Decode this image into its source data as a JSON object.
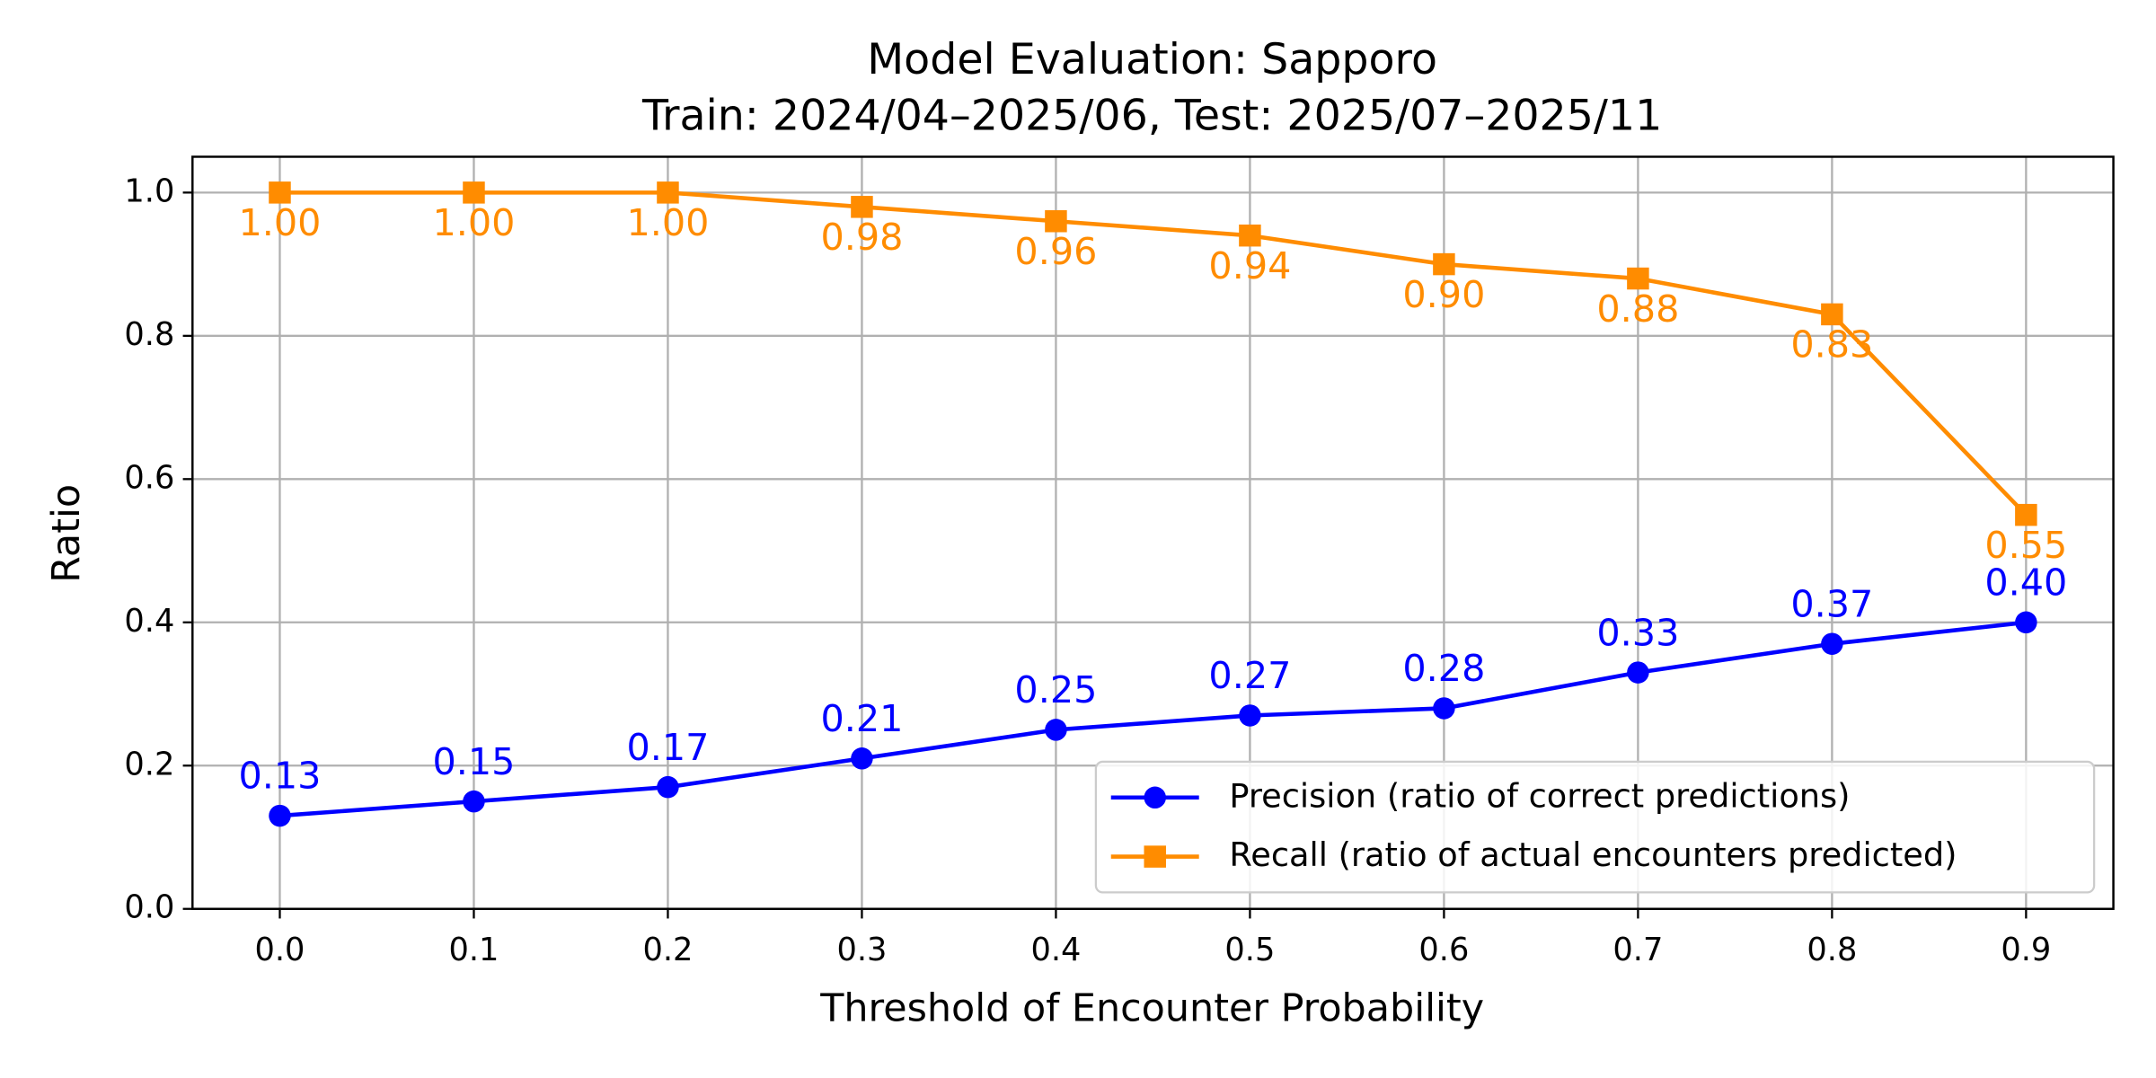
{
  "chart_data": {
    "type": "line",
    "title": "Model Evaluation: Sapporo",
    "subtitle": "Train: 2024/04–2025/06, Test: 2025/07–2025/11",
    "x_label": "Threshold of Encounter Probability",
    "y_label": "Ratio",
    "x": [
      0,
      0.1,
      0.2,
      0.3,
      0.4,
      0.5,
      0.6,
      0.7,
      0.8,
      0.9
    ],
    "series": [
      {
        "name": "Precision (ratio of correct predictions)",
        "color": "#0000ff",
        "marker": "circle",
        "label_position": "above",
        "values": [
          0.13,
          0.15,
          0.17,
          0.21,
          0.25,
          0.27,
          0.28,
          0.33,
          0.37,
          0.4
        ],
        "value_labels": [
          "0.13",
          "0.15",
          "0.17",
          "0.21",
          "0.25",
          "0.27",
          "0.28",
          "0.33",
          "0.37",
          "0.40"
        ]
      },
      {
        "name": "Recall (ratio of actual encounters predicted)",
        "color": "#ff8c00",
        "marker": "square",
        "label_position": "below",
        "values": [
          1,
          1,
          1,
          0.98,
          0.96,
          0.94,
          0.9,
          0.88,
          0.83,
          0.55
        ],
        "value_labels": [
          "1.00",
          "1.00",
          "1.00",
          "0.98",
          "0.96",
          "0.94",
          "0.90",
          "0.88",
          "0.83",
          "0.55"
        ]
      }
    ],
    "xlim": [
      -0.045,
      0.945
    ],
    "ylim": [
      0,
      1.05
    ],
    "xticks": [
      {
        "value": 0,
        "label": "0.0"
      },
      0.1,
      0.2,
      0.3,
      0.4,
      0.5,
      0.6,
      0.7,
      0.8,
      0.9
    ],
    "yticks": [
      {
        "value": 0,
        "label": "0.0"
      },
      0.2,
      0.4,
      0.6,
      0.8,
      {
        "value": 1,
        "label": "1.0"
      }
    ],
    "grid": true,
    "legend": "lower right"
  }
}
